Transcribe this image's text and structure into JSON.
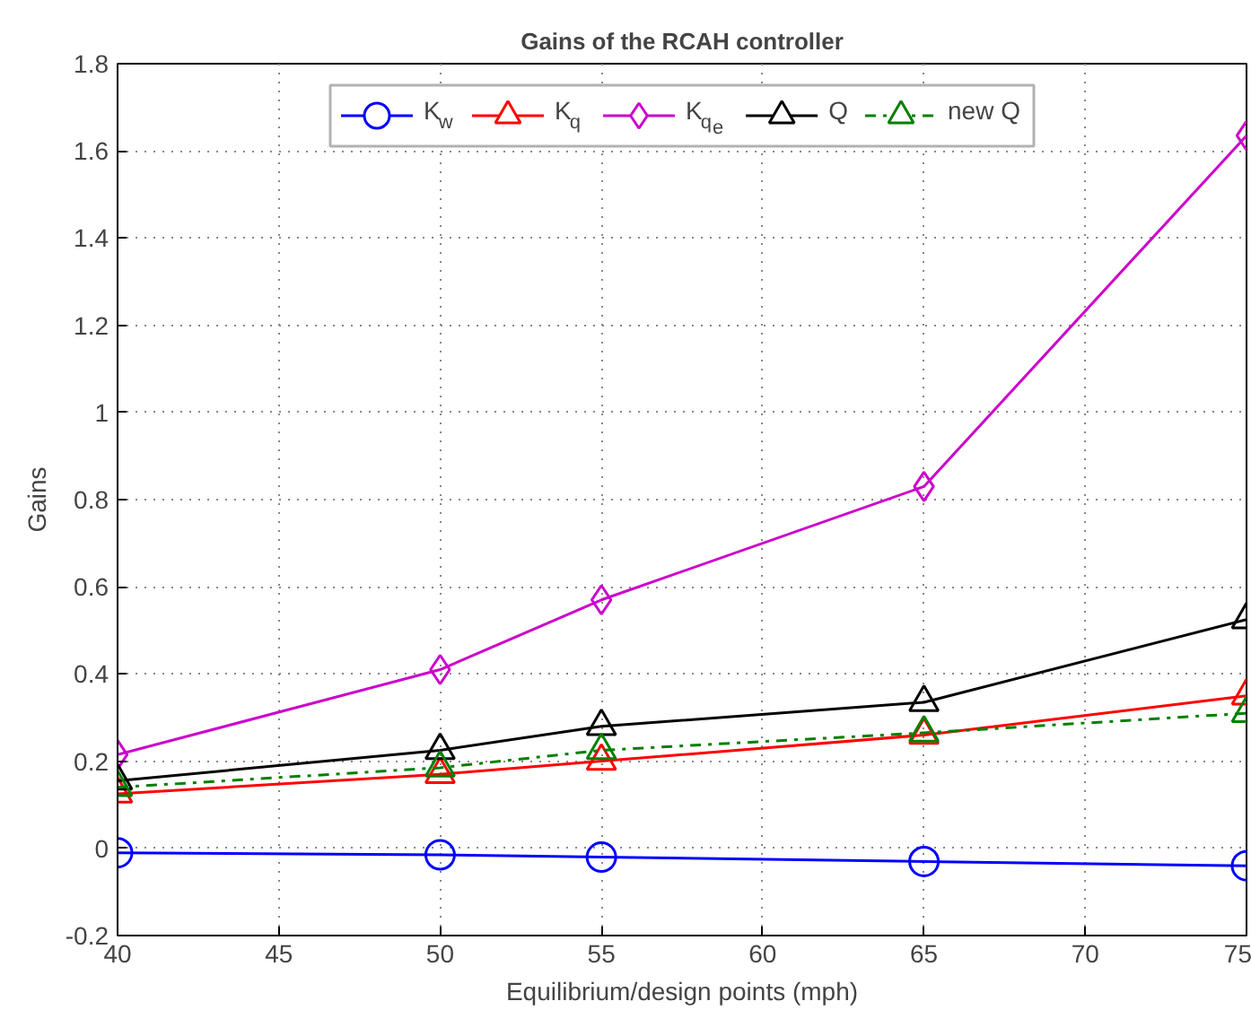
{
  "chart_data": {
    "type": "line",
    "title": "Gains of the RCAH controller",
    "xlabel": "Equilibrium/design points (mph)",
    "ylabel": "Gains",
    "x": [
      40,
      50,
      55,
      65,
      75
    ],
    "series": [
      {
        "name": "K$_{w}$",
        "color": "#0000ff",
        "marker": "circle",
        "line_style": "solid",
        "values": [
          -0.01,
          -0.015,
          -0.02,
          -0.03,
          -0.04
        ]
      },
      {
        "name": "K$_{q}$",
        "color": "#ff0000",
        "marker": "triangle",
        "line_style": "solid",
        "values": [
          0.125,
          0.17,
          0.2,
          0.26,
          0.35
        ]
      },
      {
        "name": "K$_{q}$$_{e}$",
        "color": "#cc00cc",
        "marker": "diamond",
        "line_style": "solid",
        "values": [
          0.215,
          0.41,
          0.57,
          0.83,
          1.635
        ]
      },
      {
        "name": "Q",
        "color": "#000000",
        "marker": "triangle",
        "line_style": "solid",
        "values": [
          0.155,
          0.225,
          0.28,
          0.335,
          0.525
        ]
      },
      {
        "name": "new Q",
        "color": "#008000",
        "marker": "triangle",
        "line_style": "dashdot",
        "values": [
          0.14,
          0.185,
          0.225,
          0.265,
          0.31
        ]
      }
    ],
    "xlim": [
      40,
      75
    ],
    "ylim": [
      -0.2,
      1.8
    ],
    "xticks": [
      40,
      45,
      50,
      55,
      60,
      65,
      70,
      75
    ],
    "yticks": [
      -0.2,
      0,
      0.2,
      0.4,
      0.6,
      0.8,
      1,
      1.2,
      1.4,
      1.6,
      1.8
    ],
    "grid": true,
    "legend": "top"
  }
}
